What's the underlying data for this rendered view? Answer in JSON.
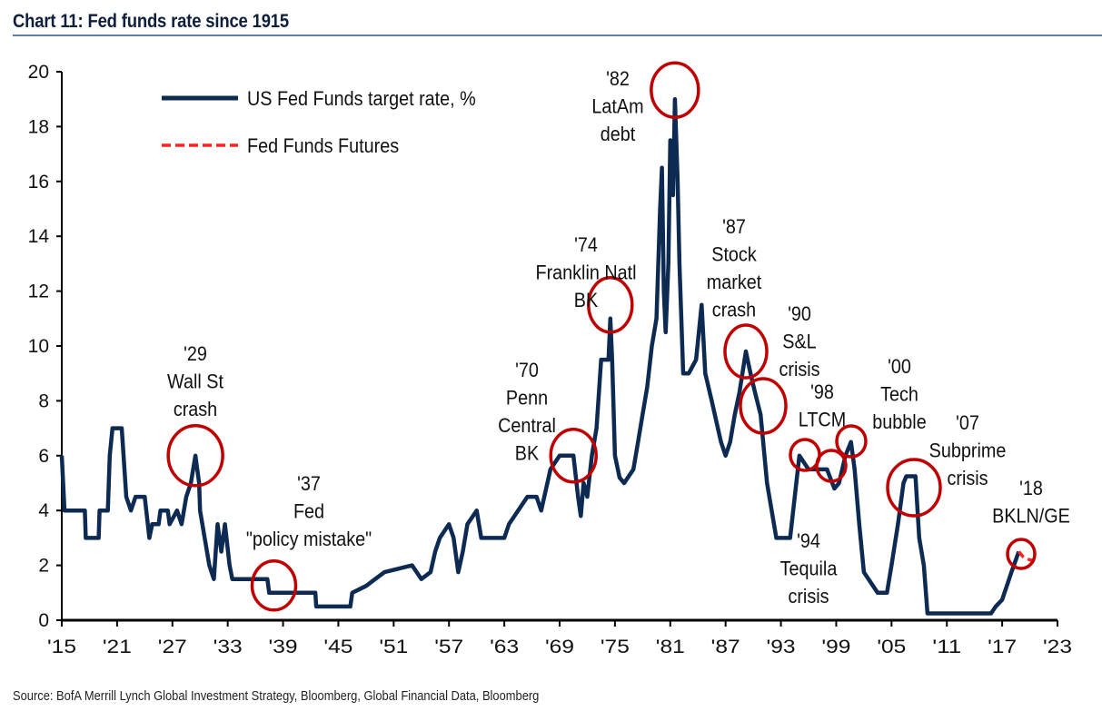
{
  "chart_data": {
    "type": "line",
    "title": "Chart 11: Fed funds rate since 1915",
    "xlabel": "",
    "ylabel": "",
    "xlim": [
      1915,
      2023
    ],
    "ylim": [
      0,
      20
    ],
    "grid": false,
    "legend_placement": "top-left",
    "x_tick_labels": [
      "'15",
      "'21",
      "'27",
      "'33",
      "'39",
      "'45",
      "'51",
      "'57",
      "'63",
      "'69",
      "'75",
      "'81",
      "'87",
      "'93",
      "'99",
      "'05",
      "'11",
      "'17",
      "'23"
    ],
    "x_tick_values": [
      1915,
      1921,
      1927,
      1933,
      1939,
      1945,
      1951,
      1957,
      1963,
      1969,
      1975,
      1981,
      1987,
      1993,
      1999,
      2005,
      2011,
      2017,
      2023
    ],
    "y_tick_labels": [
      "0",
      "2",
      "4",
      "6",
      "8",
      "10",
      "12",
      "14",
      "16",
      "18",
      "20"
    ],
    "series": [
      {
        "name": "US Fed Funds target rate, %",
        "color": "#0d2a52",
        "style": "solid",
        "points": [
          [
            1915,
            6
          ],
          [
            1915.3,
            4
          ],
          [
            1917.5,
            4
          ],
          [
            1917.6,
            3
          ],
          [
            1919,
            3
          ],
          [
            1919.1,
            4
          ],
          [
            1920,
            4
          ],
          [
            1920.2,
            6
          ],
          [
            1920.5,
            7
          ],
          [
            1921.5,
            7
          ],
          [
            1921.7,
            6
          ],
          [
            1922,
            4.5
          ],
          [
            1922.5,
            4
          ],
          [
            1923,
            4.5
          ],
          [
            1924,
            4.5
          ],
          [
            1924.5,
            3
          ],
          [
            1924.8,
            3.5
          ],
          [
            1925.5,
            3.5
          ],
          [
            1925.7,
            4
          ],
          [
            1926.5,
            4
          ],
          [
            1926.7,
            3.5
          ],
          [
            1927.5,
            4
          ],
          [
            1928,
            3.5
          ],
          [
            1928.5,
            4.5
          ],
          [
            1929,
            5
          ],
          [
            1929.5,
            6
          ],
          [
            1929.9,
            5
          ],
          [
            1930,
            4
          ],
          [
            1930.5,
            3
          ],
          [
            1931,
            2
          ],
          [
            1931.5,
            1.5
          ],
          [
            1931.9,
            3.5
          ],
          [
            1932.3,
            2.5
          ],
          [
            1932.7,
            3.5
          ],
          [
            1933.2,
            2
          ],
          [
            1933.5,
            1.5
          ],
          [
            1937.3,
            1.5
          ],
          [
            1937.5,
            1
          ],
          [
            1942.5,
            1
          ],
          [
            1942.6,
            0.5
          ],
          [
            1946.3,
            0.5
          ],
          [
            1946.5,
            1
          ],
          [
            1948,
            1.25
          ],
          [
            1949,
            1.5
          ],
          [
            1950,
            1.75
          ],
          [
            1953,
            2
          ],
          [
            1954,
            1.5
          ],
          [
            1955,
            1.75
          ],
          [
            1955.5,
            2.5
          ],
          [
            1956,
            3
          ],
          [
            1957,
            3.5
          ],
          [
            1957.5,
            3
          ],
          [
            1958,
            1.75
          ],
          [
            1958.5,
            2.5
          ],
          [
            1959,
            3.5
          ],
          [
            1960,
            4
          ],
          [
            1960.5,
            3
          ],
          [
            1963,
            3
          ],
          [
            1963.5,
            3.5
          ],
          [
            1964.5,
            4
          ],
          [
            1965.5,
            4.5
          ],
          [
            1966.5,
            4.5
          ],
          [
            1967,
            4
          ],
          [
            1968,
            5.5
          ],
          [
            1969,
            6
          ],
          [
            1970.5,
            6
          ],
          [
            1971,
            4.5
          ],
          [
            1971.3,
            3.8
          ],
          [
            1971.6,
            5
          ],
          [
            1972,
            4.5
          ],
          [
            1972.5,
            6
          ],
          [
            1973,
            7
          ],
          [
            1973.5,
            9.5
          ],
          [
            1974.3,
            9.5
          ],
          [
            1974.5,
            11
          ],
          [
            1974.7,
            9.5
          ],
          [
            1975,
            6
          ],
          [
            1975.5,
            5.2
          ],
          [
            1976,
            5
          ],
          [
            1977,
            5.5
          ],
          [
            1977.5,
            6.5
          ],
          [
            1978,
            7.5
          ],
          [
            1978.5,
            8.5
          ],
          [
            1979,
            10
          ],
          [
            1979.5,
            11
          ],
          [
            1979.9,
            15
          ],
          [
            1980.1,
            16.5
          ],
          [
            1980.3,
            12
          ],
          [
            1980.5,
            10.5
          ],
          [
            1980.8,
            13
          ],
          [
            1981,
            17.5
          ],
          [
            1981.3,
            15.5
          ],
          [
            1981.5,
            19
          ],
          [
            1981.8,
            16
          ],
          [
            1982,
            13
          ],
          [
            1982.4,
            9
          ],
          [
            1983,
            9
          ],
          [
            1983.8,
            9.5
          ],
          [
            1984.4,
            11.5
          ],
          [
            1984.8,
            9
          ],
          [
            1985.5,
            8
          ],
          [
            1986.5,
            6.5
          ],
          [
            1987,
            6
          ],
          [
            1987.5,
            6.5
          ],
          [
            1988,
            7.5
          ],
          [
            1988.5,
            8.3
          ],
          [
            1989.2,
            9.8
          ],
          [
            1989.7,
            9
          ],
          [
            1990.2,
            8.3
          ],
          [
            1990.8,
            7.5
          ],
          [
            1991.5,
            5
          ],
          [
            1992,
            4
          ],
          [
            1992.5,
            3
          ],
          [
            1994,
            3
          ],
          [
            1994.5,
            4.5
          ],
          [
            1995,
            6
          ],
          [
            1996,
            5.5
          ],
          [
            1998,
            5.5
          ],
          [
            1998.8,
            4.8
          ],
          [
            1999.3,
            5
          ],
          [
            2000,
            6
          ],
          [
            2000.6,
            6.5
          ],
          [
            2001,
            5.5
          ],
          [
            2001.5,
            3.5
          ],
          [
            2002,
            1.75
          ],
          [
            2003,
            1.25
          ],
          [
            2003.5,
            1
          ],
          [
            2004.5,
            1
          ],
          [
            2005,
            2
          ],
          [
            2005.7,
            3.5
          ],
          [
            2006.3,
            5
          ],
          [
            2006.6,
            5.25
          ],
          [
            2007.6,
            5.25
          ],
          [
            2008,
            3
          ],
          [
            2008.5,
            2
          ],
          [
            2008.9,
            0.25
          ],
          [
            2015.8,
            0.25
          ],
          [
            2016.3,
            0.5
          ],
          [
            2017,
            0.75
          ],
          [
            2017.5,
            1.25
          ],
          [
            2018,
            1.75
          ],
          [
            2018.8,
            2.5
          ]
        ]
      },
      {
        "name": "Fed Funds Futures",
        "color": "#ff2020",
        "style": "dashed",
        "points": [
          [
            2018.8,
            2.5
          ],
          [
            2019.3,
            2.3
          ],
          [
            2020,
            2.2
          ],
          [
            2021,
            2.15
          ]
        ]
      }
    ],
    "annotations": [
      {
        "lines": [
          "'29",
          "Wall St",
          "crash"
        ],
        "year": 1929.5,
        "value": 6
      },
      {
        "lines": [
          "'37",
          "Fed",
          "\"policy mistake\""
        ],
        "year": 1938.5,
        "value": 1
      },
      {
        "lines": [
          "'70",
          "Penn",
          "Central",
          "BK"
        ],
        "year": 1970.5,
        "value": 6
      },
      {
        "lines": [
          "'74",
          "Franklin Natl",
          "BK"
        ],
        "year": 1974.5,
        "value": 11
      },
      {
        "lines": [
          "'82",
          "LatAm",
          "debt"
        ],
        "year": 1981.5,
        "value": 19
      },
      {
        "lines": [
          "'87",
          "Stock",
          "market",
          "crash"
        ],
        "year": 1989.2,
        "value": 9.8
      },
      {
        "lines": [
          "'90",
          "S&L",
          "crisis"
        ],
        "year": 1990.8,
        "value": 8
      },
      {
        "lines": [
          "'94",
          "Tequila",
          "crisis"
        ],
        "year": 1995,
        "value": 6
      },
      {
        "lines": [
          "'98",
          "LTCM"
        ],
        "year": 1998,
        "value": 5.5
      },
      {
        "lines": [
          "'00",
          "Tech",
          "bubble"
        ],
        "year": 2000.6,
        "value": 6.5
      },
      {
        "lines": [
          "'07",
          "Subprime",
          "crisis"
        ],
        "year": 2007,
        "value": 5
      },
      {
        "lines": [
          "'18",
          "BKLN/GE"
        ],
        "year": 2018.6,
        "value": 2.4
      }
    ],
    "annotation_marker_color": "#c00000",
    "axis_color": "#000000"
  },
  "source": "Source:  BofA Merrill Lynch Global Investment Strategy, Bloomberg, Global Financial Data, Bloomberg"
}
